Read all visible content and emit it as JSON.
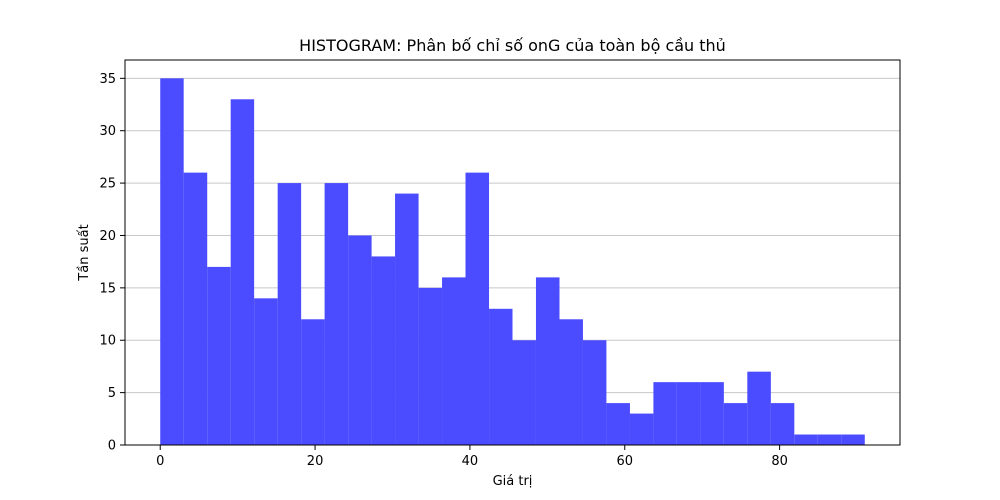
{
  "chart_data": {
    "type": "bar",
    "title": "HISTOGRAM: Phân bố chỉ số onG của toàn bộ cầu thủ",
    "xlabel": "Giá trị",
    "ylabel": "Tần suất",
    "bin_edges": [
      0,
      3.03,
      6.07,
      9.1,
      12.13,
      15.17,
      18.2,
      21.23,
      24.27,
      27.3,
      30.33,
      33.37,
      36.4,
      39.43,
      42.47,
      45.5,
      48.53,
      51.57,
      54.6,
      57.63,
      60.67,
      63.7,
      66.73,
      69.77,
      72.8,
      75.83,
      78.87,
      81.9,
      84.93,
      87.97,
      91.0
    ],
    "values": [
      35,
      26,
      17,
      33,
      14,
      25,
      12,
      25,
      20,
      18,
      24,
      15,
      16,
      26,
      13,
      10,
      16,
      12,
      10,
      4,
      3,
      6,
      6,
      6,
      4,
      7,
      4,
      1,
      1,
      1
    ],
    "xlim": [
      -4.55,
      95.55
    ],
    "ylim": [
      0,
      36.75
    ],
    "xticks": [
      0,
      20,
      40,
      60,
      80
    ],
    "yticks": [
      0,
      5,
      10,
      15,
      20,
      25,
      30,
      35
    ],
    "grid": "y",
    "bar_color": "#4b4bff"
  }
}
